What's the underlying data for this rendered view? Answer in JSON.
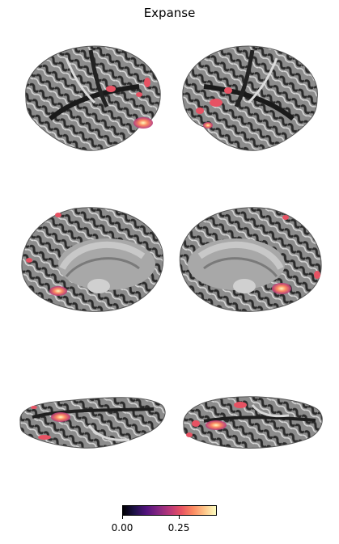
{
  "title": "Expanse",
  "colorbar": {
    "colormap": "magma",
    "ticks": [
      "0.00",
      "0.25"
    ],
    "colors": [
      "#000004",
      "#51127c",
      "#b73779",
      "#fc8961",
      "#fcfdbf"
    ]
  },
  "views": [
    {
      "name": "left-lateral"
    },
    {
      "name": "right-lateral"
    },
    {
      "name": "left-medial"
    },
    {
      "name": "right-medial"
    },
    {
      "name": "left-ventral"
    },
    {
      "name": "right-ventral"
    }
  ]
}
